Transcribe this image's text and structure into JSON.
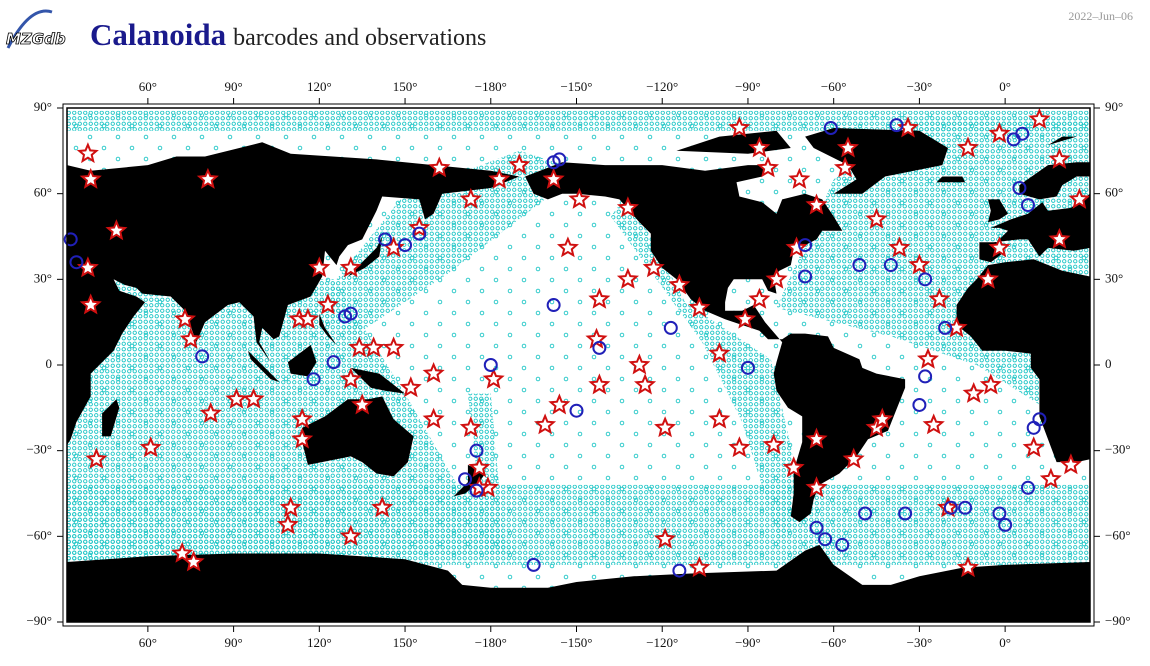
{
  "header": {
    "logo": "MZGdb",
    "title": "Calanoida",
    "subtitle": "barcodes and observations",
    "date": "2022–Jun–06"
  },
  "map": {
    "xlim": [
      31.7,
      389.7
    ],
    "ylim": [
      -90,
      90
    ],
    "xticks": [
      {
        "value": 60,
        "label": "60°"
      },
      {
        "value": 90,
        "label": "90°"
      },
      {
        "value": 120,
        "label": "120°"
      },
      {
        "value": 150,
        "label": "150°"
      },
      {
        "value": 180,
        "label": "−180°"
      },
      {
        "value": 210,
        "label": "−150°"
      },
      {
        "value": 240,
        "label": "−120°"
      },
      {
        "value": 270,
        "label": "−90°"
      },
      {
        "value": 300,
        "label": "−60°"
      },
      {
        "value": 330,
        "label": "−30°"
      },
      {
        "value": 360,
        "label": "0°"
      }
    ],
    "yticks": [
      {
        "value": 90,
        "label": "90°"
      },
      {
        "value": 60,
        "label": "60°"
      },
      {
        "value": 30,
        "label": "30°"
      },
      0,
      {
        "value": -30,
        "label": "−30°"
      },
      {
        "value": -60,
        "label": "−60°"
      },
      {
        "value": -90,
        "label": "−90°"
      }
    ],
    "observations": [
      [
        39,
        74
      ],
      [
        40,
        65
      ],
      [
        81,
        65
      ],
      [
        49,
        47
      ],
      [
        39,
        34
      ],
      [
        40,
        21
      ],
      [
        73,
        16
      ],
      [
        75,
        9
      ],
      [
        82,
        -17
      ],
      [
        91,
        -12
      ],
      [
        97,
        -12
      ],
      [
        114,
        -19
      ],
      [
        114,
        -26
      ],
      [
        110,
        -50
      ],
      [
        109,
        -56
      ],
      [
        131,
        -60
      ],
      [
        142,
        -50
      ],
      [
        76,
        -69
      ],
      [
        72,
        -66
      ],
      [
        61,
        -29
      ],
      [
        42,
        -33
      ],
      [
        131,
        -5
      ],
      [
        135,
        -14
      ],
      [
        139,
        6
      ],
      [
        146,
        6
      ],
      [
        134,
        6
      ],
      [
        152,
        -8
      ],
      [
        160,
        -3
      ],
      [
        160,
        -19
      ],
      [
        173,
        -22
      ],
      [
        176,
        -36
      ],
      [
        179,
        -43
      ],
      [
        176,
        -43
      ],
      [
        181,
        -5
      ],
      [
        199,
        -21
      ],
      [
        204,
        -14
      ],
      [
        217,
        9
      ],
      [
        218,
        -7
      ],
      [
        228,
        55
      ],
      [
        232,
        0
      ],
      [
        234,
        -7
      ],
      [
        241,
        -22
      ],
      [
        241,
        -61
      ],
      [
        253,
        -71
      ],
      [
        260,
        -19
      ],
      [
        267,
        -29
      ],
      [
        279,
        -28
      ],
      [
        286,
        -36
      ],
      [
        294,
        -26
      ],
      [
        294,
        -43
      ],
      [
        307,
        -33
      ],
      [
        315,
        -22
      ],
      [
        317,
        -19
      ],
      [
        335,
        -21
      ],
      [
        340,
        -50
      ],
      [
        347,
        -71
      ],
      [
        349,
        -10
      ],
      [
        355,
        -7
      ],
      [
        370,
        -29
      ],
      [
        383,
        -35
      ],
      [
        376,
        -40
      ],
      [
        354,
        30
      ],
      [
        358,
        41
      ],
      [
        379,
        44
      ],
      [
        386,
        58
      ],
      [
        379,
        72
      ],
      [
        347,
        76
      ],
      [
        358,
        81
      ],
      [
        372,
        86
      ],
      [
        326,
        83
      ],
      [
        304,
        69
      ],
      [
        294,
        56
      ],
      [
        287,
        41
      ],
      [
        280,
        30
      ],
      [
        274,
        23
      ],
      [
        269,
        16
      ],
      [
        260,
        4
      ],
      [
        253,
        20
      ],
      [
        246,
        28
      ],
      [
        237,
        34
      ],
      [
        228,
        30
      ],
      [
        218,
        23
      ],
      [
        207,
        41
      ],
      [
        211,
        58
      ],
      [
        202,
        65
      ],
      [
        190,
        70
      ],
      [
        183,
        65
      ],
      [
        173,
        58
      ],
      [
        162,
        69
      ],
      [
        155,
        48
      ],
      [
        146,
        41
      ],
      [
        131,
        34
      ],
      [
        120,
        34
      ],
      [
        113,
        16
      ],
      [
        116,
        16
      ],
      [
        123,
        21
      ],
      [
        267,
        83
      ],
      [
        274,
        76
      ],
      [
        277,
        69
      ],
      [
        288,
        65
      ],
      [
        305,
        76
      ],
      [
        315,
        51
      ],
      [
        323,
        41
      ],
      [
        330,
        35
      ],
      [
        337,
        23
      ],
      [
        343,
        13
      ],
      [
        333,
        2
      ]
    ],
    "barcodes": [
      [
        33,
        44
      ],
      [
        35,
        36
      ],
      [
        79,
        3
      ],
      [
        118,
        -5
      ],
      [
        125,
        1
      ],
      [
        129,
        17
      ],
      [
        131,
        18
      ],
      [
        143,
        44
      ],
      [
        155,
        46
      ],
      [
        150,
        42
      ],
      [
        180,
        0
      ],
      [
        202,
        21
      ],
      [
        210,
        -16
      ],
      [
        218,
        6
      ],
      [
        243,
        13
      ],
      [
        270,
        -1
      ],
      [
        290,
        42
      ],
      [
        290,
        31
      ],
      [
        309,
        35
      ],
      [
        320,
        35
      ],
      [
        332,
        30
      ],
      [
        339,
        13
      ],
      [
        332,
        -4
      ],
      [
        330,
        -14
      ],
      [
        341,
        -50
      ],
      [
        346,
        -50
      ],
      [
        358,
        -52
      ],
      [
        360,
        -56
      ],
      [
        368,
        -43
      ],
      [
        370,
        -22
      ],
      [
        372,
        -19
      ],
      [
        365,
        62
      ],
      [
        368,
        56
      ],
      [
        363,
        79
      ],
      [
        366,
        81
      ],
      [
        299,
        83
      ],
      [
        322,
        84
      ],
      [
        195,
        -70
      ],
      [
        246,
        -72
      ],
      [
        294,
        -57
      ],
      [
        297,
        -61
      ],
      [
        303,
        -63
      ],
      [
        311,
        -52
      ],
      [
        325,
        -52
      ],
      [
        175,
        -30
      ],
      [
        175,
        -44
      ],
      [
        171,
        -40
      ],
      [
        202,
        71
      ],
      [
        204,
        72
      ]
    ]
  }
}
